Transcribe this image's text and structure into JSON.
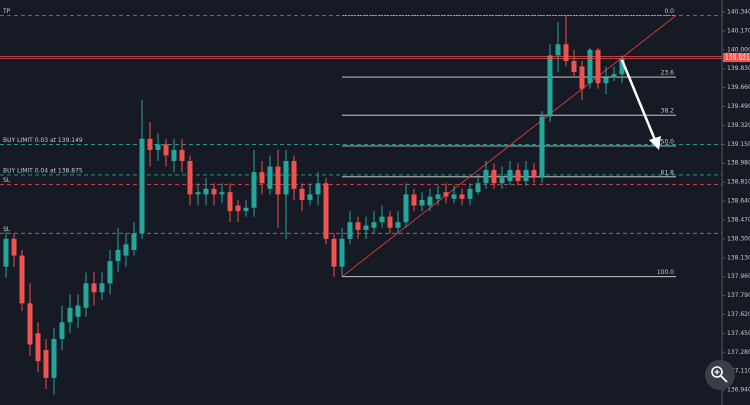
{
  "chart_data": {
    "type": "candlestick",
    "up_color": "#26a69a",
    "down_color": "#ef5350",
    "open": [
      138.05,
      138.3,
      138.15,
      137.72,
      137.45,
      137.3,
      137.05,
      137.4,
      137.55,
      137.6,
      137.68,
      137.9,
      137.82,
      137.9,
      138.1,
      138.15,
      138.2,
      138.35,
      139.2,
      139.1,
      139.15,
      139.0,
      139.1,
      139.0,
      138.7,
      138.7,
      138.75,
      138.7,
      138.72,
      138.6,
      138.55,
      138.58,
      138.9,
      138.75,
      138.95,
      138.7,
      139.0,
      138.75,
      138.65,
      138.7,
      138.8,
      138.3,
      138.05,
      138.3,
      138.45,
      138.38,
      138.4,
      138.45,
      138.5,
      138.4,
      138.45,
      138.7,
      138.6,
      138.6,
      138.66,
      138.72,
      138.66,
      138.7,
      138.66,
      138.72,
      138.8,
      138.92,
      138.8,
      138.82,
      138.92,
      138.82,
      138.92,
      138.85,
      139.4,
      139.95,
      140.05,
      139.9,
      139.85,
      139.7,
      140.0,
      139.7,
      139.75,
      139.78
    ],
    "high": [
      138.4,
      138.35,
      138.2,
      137.9,
      137.55,
      137.4,
      137.5,
      137.7,
      137.8,
      137.8,
      138.0,
      138.0,
      138.0,
      138.2,
      138.4,
      138.35,
      138.45,
      139.55,
      139.35,
      139.25,
      139.2,
      139.2,
      139.2,
      139.05,
      138.8,
      138.85,
      138.8,
      138.8,
      138.8,
      138.65,
      138.65,
      139.1,
      139.0,
      139.05,
      139.1,
      139.1,
      139.05,
      138.8,
      138.8,
      138.9,
      138.85,
      138.35,
      138.4,
      138.55,
      138.5,
      138.5,
      138.55,
      138.6,
      138.55,
      138.55,
      138.8,
      138.75,
      138.72,
      138.75,
      138.78,
      138.8,
      138.78,
      138.75,
      138.8,
      138.85,
      139.0,
      138.98,
      138.95,
      139.0,
      138.98,
      139.0,
      138.98,
      139.45,
      140.05,
      140.25,
      140.31,
      140.0,
      139.9,
      140.02,
      140.02,
      139.85,
      139.85,
      139.95
    ],
    "low": [
      137.95,
      138.05,
      137.65,
      137.25,
      137.1,
      136.95,
      136.9,
      137.3,
      137.45,
      137.5,
      137.6,
      137.7,
      137.75,
      137.8,
      138.0,
      138.05,
      138.15,
      138.3,
      138.95,
      139.0,
      138.95,
      138.9,
      138.9,
      138.6,
      138.6,
      138.6,
      138.6,
      138.62,
      138.45,
      138.45,
      138.5,
      138.5,
      138.7,
      138.7,
      138.4,
      138.3,
      138.65,
      138.55,
      138.6,
      138.6,
      138.25,
      137.96,
      137.96,
      138.25,
      138.3,
      138.3,
      138.35,
      138.4,
      138.35,
      138.35,
      138.4,
      138.55,
      138.55,
      138.55,
      138.6,
      138.62,
      138.62,
      138.6,
      138.6,
      138.7,
      138.75,
      138.75,
      138.75,
      138.78,
      138.78,
      138.78,
      138.8,
      138.8,
      139.35,
      139.8,
      139.85,
      139.75,
      139.55,
      139.65,
      139.65,
      139.6,
      139.72,
      139.7
    ],
    "close": [
      138.3,
      138.15,
      137.72,
      137.35,
      137.2,
      137.05,
      137.4,
      137.55,
      137.68,
      137.7,
      137.9,
      137.82,
      137.9,
      138.1,
      138.2,
      138.25,
      138.35,
      139.2,
      139.1,
      139.15,
      139.05,
      139.1,
      139.0,
      138.7,
      138.72,
      138.75,
      138.7,
      138.72,
      138.55,
      138.55,
      138.58,
      138.9,
      138.8,
      138.95,
      138.7,
      139.0,
      138.75,
      138.65,
      138.7,
      138.8,
      138.3,
      138.05,
      138.3,
      138.45,
      138.38,
      138.42,
      138.45,
      138.5,
      138.4,
      138.45,
      138.7,
      138.6,
      138.65,
      138.68,
      138.7,
      138.68,
      138.7,
      138.66,
      138.75,
      138.8,
      138.92,
      138.8,
      138.85,
      138.92,
      138.82,
      138.92,
      138.85,
      139.4,
      139.95,
      140.05,
      139.9,
      139.8,
      139.65,
      140.0,
      139.7,
      139.75,
      139.78,
      139.92
    ],
    "ylim": [
      136.806,
      140.448
    ],
    "yticks": [
      {
        "value": 140.34,
        "label": "140.340"
      },
      {
        "value": 140.17,
        "label": "140.170"
      },
      {
        "value": 140.0,
        "label": "140.000"
      },
      {
        "value": 139.83,
        "label": "139.830"
      },
      {
        "value": 139.66,
        "label": "139.660"
      },
      {
        "value": 139.49,
        "label": "139.490"
      },
      {
        "value": 139.32,
        "label": "139.320"
      },
      {
        "value": 139.15,
        "label": "139.150"
      },
      {
        "value": 138.98,
        "label": "138.980"
      },
      {
        "value": 138.81,
        "label": "138.810"
      },
      {
        "value": 138.64,
        "label": "138.640"
      },
      {
        "value": 138.47,
        "label": "138.470"
      },
      {
        "value": 138.3,
        "label": "138.300"
      },
      {
        "value": 138.13,
        "label": "138.130"
      },
      {
        "value": 137.96,
        "label": "137.960"
      },
      {
        "value": 137.79,
        "label": "137.790"
      },
      {
        "value": 137.62,
        "label": "137.620"
      },
      {
        "value": 137.45,
        "label": "137.450"
      },
      {
        "value": 137.28,
        "label": "137.280"
      },
      {
        "value": 137.11,
        "label": "137.110"
      },
      {
        "value": 136.94,
        "label": "136.940"
      }
    ],
    "levels": [
      {
        "label": "TP",
        "value": 140.31,
        "color": "#ef5350"
      },
      {
        "label": "BUY LIMIT 0.03 at 139.149",
        "value": 139.149,
        "color": "#26a69a"
      },
      {
        "label": "BUY LIMIT 0.04 at 138.875",
        "value": 138.875,
        "color": "#26a69a"
      },
      {
        "label": "SL",
        "value": 138.79,
        "color": "#ef5350"
      },
      {
        "label": "SL",
        "value": 138.35,
        "color": "#ef5350"
      }
    ],
    "price_tags": [
      {
        "value": 139.941,
        "label": "139.941"
      },
      {
        "value": 139.921,
        "label": "139.921"
      }
    ],
    "fibonacci": [
      {
        "label": "0.0",
        "value": 140.31
      },
      {
        "label": "23.6",
        "value": 139.755
      },
      {
        "label": "38.2",
        "value": 139.412
      },
      {
        "label": "50.0",
        "value": 139.135
      },
      {
        "label": "61.8",
        "value": 138.858
      },
      {
        "label": "100.0",
        "value": 137.96
      }
    ],
    "trend_line": [
      137.96,
      140.31
    ]
  }
}
